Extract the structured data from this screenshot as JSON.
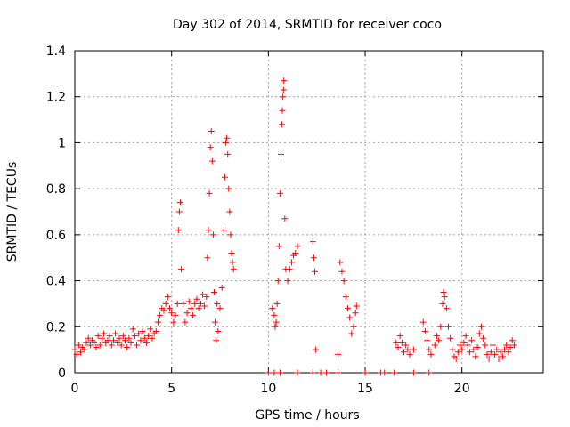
{
  "chart_data": {
    "type": "scatter",
    "title": "Day 302 of 2014, SRMTID for receiver coco",
    "xlabel": "GPS time / hours",
    "ylabel": "SRMTID / TECUs",
    "xlim": [
      0,
      24.2
    ],
    "ylim": [
      0,
      1.4
    ],
    "xticks": [
      0,
      5,
      10,
      15,
      20
    ],
    "xtick_labels": [
      "0",
      "5",
      "10",
      "15",
      "20"
    ],
    "yticks": [
      0,
      0.2,
      0.4,
      0.6,
      0.8,
      1,
      1.2,
      1.4
    ],
    "ytick_labels": [
      "0",
      "0.2",
      "0.4",
      "0.6",
      "0.8",
      "1",
      "1.2",
      "1.4"
    ],
    "grid": true,
    "marker": "+",
    "color": "#ff0000",
    "series": [
      {
        "name": "SRMTID",
        "points": [
          [
            0.0,
            0.1
          ],
          [
            0.1,
            0.08
          ],
          [
            0.2,
            0.12
          ],
          [
            0.3,
            0.09
          ],
          [
            0.4,
            0.11
          ],
          [
            0.5,
            0.1
          ],
          [
            0.6,
            0.13
          ],
          [
            0.7,
            0.15
          ],
          [
            0.8,
            0.12
          ],
          [
            0.9,
            0.14
          ],
          [
            1.0,
            0.13
          ],
          [
            1.1,
            0.11
          ],
          [
            1.2,
            0.16
          ],
          [
            1.3,
            0.12
          ],
          [
            1.4,
            0.15
          ],
          [
            1.5,
            0.17
          ],
          [
            1.6,
            0.13
          ],
          [
            1.7,
            0.14
          ],
          [
            1.8,
            0.16
          ],
          [
            1.9,
            0.12
          ],
          [
            2.0,
            0.14
          ],
          [
            2.1,
            0.17
          ],
          [
            2.2,
            0.13
          ],
          [
            2.3,
            0.15
          ],
          [
            2.4,
            0.12
          ],
          [
            2.5,
            0.16
          ],
          [
            2.6,
            0.14
          ],
          [
            2.7,
            0.11
          ],
          [
            2.8,
            0.15
          ],
          [
            2.9,
            0.13
          ],
          [
            3.0,
            0.19
          ],
          [
            3.1,
            0.16
          ],
          [
            3.2,
            0.12
          ],
          [
            3.3,
            0.17
          ],
          [
            3.4,
            0.14
          ],
          [
            3.5,
            0.18
          ],
          [
            3.6,
            0.15
          ],
          [
            3.7,
            0.13
          ],
          [
            3.8,
            0.16
          ],
          [
            3.9,
            0.19
          ],
          [
            4.0,
            0.15
          ],
          [
            4.1,
            0.17
          ],
          [
            4.2,
            0.18
          ],
          [
            4.3,
            0.22
          ],
          [
            4.4,
            0.25
          ],
          [
            4.5,
            0.28
          ],
          [
            4.6,
            0.27
          ],
          [
            4.7,
            0.3
          ],
          [
            4.8,
            0.33
          ],
          [
            4.9,
            0.28
          ],
          [
            5.0,
            0.26
          ],
          [
            5.1,
            0.22
          ],
          [
            5.2,
            0.25
          ],
          [
            5.3,
            0.3
          ],
          [
            5.35,
            0.62
          ],
          [
            5.4,
            0.7
          ],
          [
            5.45,
            0.74
          ],
          [
            5.5,
            0.45
          ],
          [
            5.6,
            0.3
          ],
          [
            5.7,
            0.22
          ],
          [
            5.8,
            0.26
          ],
          [
            5.9,
            0.31
          ],
          [
            6.0,
            0.28
          ],
          [
            6.1,
            0.25
          ],
          [
            6.2,
            0.3
          ],
          [
            6.3,
            0.32
          ],
          [
            6.4,
            0.28
          ],
          [
            6.5,
            0.3
          ],
          [
            6.6,
            0.34
          ],
          [
            6.7,
            0.29
          ],
          [
            6.8,
            0.33
          ],
          [
            6.85,
            0.5
          ],
          [
            6.9,
            0.62
          ],
          [
            6.95,
            0.78
          ],
          [
            7.0,
            0.98
          ],
          [
            7.05,
            1.05
          ],
          [
            7.1,
            0.92
          ],
          [
            7.15,
            0.6
          ],
          [
            7.2,
            0.35
          ],
          [
            7.25,
            0.22
          ],
          [
            7.3,
            0.14
          ],
          [
            7.35,
            0.3
          ],
          [
            7.4,
            0.18
          ],
          [
            7.5,
            0.28
          ],
          [
            7.6,
            0.37
          ],
          [
            7.7,
            0.62
          ],
          [
            7.75,
            0.85
          ],
          [
            7.8,
            1.0
          ],
          [
            7.85,
            1.02
          ],
          [
            7.9,
            0.95
          ],
          [
            7.95,
            0.8
          ],
          [
            8.0,
            0.7
          ],
          [
            8.05,
            0.6
          ],
          [
            8.1,
            0.52
          ],
          [
            8.15,
            0.48
          ],
          [
            8.2,
            0.45
          ],
          [
            10.2,
            0.28
          ],
          [
            10.3,
            0.25
          ],
          [
            10.35,
            0.2
          ],
          [
            10.4,
            0.22
          ],
          [
            10.45,
            0.3
          ],
          [
            10.5,
            0.4
          ],
          [
            10.55,
            0.55
          ],
          [
            10.6,
            0.78
          ],
          [
            10.65,
            0.95
          ],
          [
            10.7,
            1.08
          ],
          [
            10.72,
            1.14
          ],
          [
            10.75,
            1.2
          ],
          [
            10.78,
            1.23
          ],
          [
            10.8,
            1.27
          ],
          [
            10.85,
            0.67
          ],
          [
            10.9,
            0.45
          ],
          [
            11.0,
            0.4
          ],
          [
            11.1,
            0.45
          ],
          [
            11.2,
            0.48
          ],
          [
            11.3,
            0.51
          ],
          [
            11.4,
            0.52
          ],
          [
            11.5,
            0.55
          ],
          [
            12.3,
            0.57
          ],
          [
            12.35,
            0.5
          ],
          [
            12.4,
            0.44
          ],
          [
            12.45,
            0.1
          ],
          [
            13.7,
            0.48
          ],
          [
            13.8,
            0.44
          ],
          [
            13.9,
            0.4
          ],
          [
            14.0,
            0.33
          ],
          [
            14.1,
            0.28
          ],
          [
            14.2,
            0.24
          ],
          [
            14.3,
            0.17
          ],
          [
            14.4,
            0.2
          ],
          [
            14.5,
            0.26
          ],
          [
            14.55,
            0.29
          ],
          [
            13.6,
            0.08
          ],
          [
            16.6,
            0.13
          ],
          [
            16.7,
            0.11
          ],
          [
            16.8,
            0.16
          ],
          [
            16.9,
            0.13
          ],
          [
            17.0,
            0.09
          ],
          [
            17.1,
            0.12
          ],
          [
            17.2,
            0.1
          ],
          [
            17.3,
            0.08
          ],
          [
            17.5,
            0.1
          ],
          [
            18.0,
            0.22
          ],
          [
            18.1,
            0.18
          ],
          [
            18.2,
            0.14
          ],
          [
            18.3,
            0.1
          ],
          [
            18.4,
            0.08
          ],
          [
            18.6,
            0.12
          ],
          [
            18.7,
            0.16
          ],
          [
            18.8,
            0.14
          ],
          [
            18.9,
            0.2
          ],
          [
            19.0,
            0.3
          ],
          [
            19.05,
            0.35
          ],
          [
            19.1,
            0.33
          ],
          [
            19.2,
            0.28
          ],
          [
            19.3,
            0.2
          ],
          [
            19.4,
            0.15
          ],
          [
            19.5,
            0.1
          ],
          [
            19.6,
            0.07
          ],
          [
            19.7,
            0.06
          ],
          [
            19.8,
            0.09
          ],
          [
            19.9,
            0.12
          ],
          [
            20.0,
            0.1
          ],
          [
            20.1,
            0.13
          ],
          [
            20.2,
            0.16
          ],
          [
            20.3,
            0.12
          ],
          [
            20.4,
            0.09
          ],
          [
            20.5,
            0.14
          ],
          [
            20.6,
            0.1
          ],
          [
            20.7,
            0.07
          ],
          [
            20.8,
            0.11
          ],
          [
            20.9,
            0.17
          ],
          [
            21.0,
            0.2
          ],
          [
            21.1,
            0.15
          ],
          [
            21.2,
            0.12
          ],
          [
            21.3,
            0.08
          ],
          [
            21.4,
            0.06
          ],
          [
            21.5,
            0.09
          ],
          [
            21.6,
            0.12
          ],
          [
            21.7,
            0.08
          ],
          [
            21.8,
            0.1
          ],
          [
            21.9,
            0.06
          ],
          [
            22.0,
            0.09
          ],
          [
            22.1,
            0.07
          ],
          [
            22.2,
            0.1
          ],
          [
            22.3,
            0.12
          ],
          [
            22.4,
            0.09
          ],
          [
            22.5,
            0.11
          ],
          [
            22.6,
            0.14
          ],
          [
            22.7,
            0.12
          ],
          [
            10.0,
            0.0
          ],
          [
            10.3,
            0.0
          ],
          [
            10.6,
            0.0
          ],
          [
            11.5,
            0.0
          ],
          [
            12.3,
            0.0
          ],
          [
            12.7,
            0.0
          ],
          [
            13.0,
            0.0
          ],
          [
            13.6,
            0.0
          ],
          [
            15.0,
            0.0
          ],
          [
            15.8,
            0.0
          ],
          [
            16.0,
            0.0
          ],
          [
            16.5,
            0.0
          ],
          [
            17.5,
            0.0
          ],
          [
            18.3,
            0.0
          ]
        ]
      }
    ]
  }
}
